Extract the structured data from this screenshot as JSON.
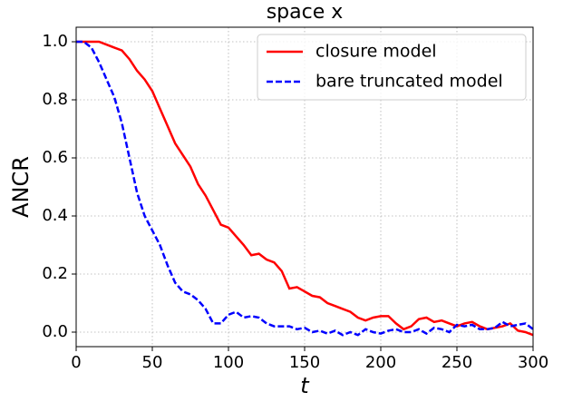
{
  "chart_data": {
    "type": "line",
    "title": "space x",
    "xlabel": "t",
    "ylabel": "ANCR",
    "x": [
      0,
      5,
      10,
      15,
      20,
      25,
      30,
      35,
      40,
      45,
      50,
      55,
      60,
      65,
      70,
      75,
      80,
      85,
      90,
      95,
      100,
      105,
      110,
      115,
      120,
      125,
      130,
      135,
      140,
      145,
      150,
      155,
      160,
      165,
      170,
      175,
      180,
      185,
      190,
      195,
      200,
      205,
      210,
      215,
      220,
      225,
      230,
      235,
      240,
      245,
      250,
      255,
      260,
      265,
      270,
      275,
      280,
      285,
      290,
      295,
      300
    ],
    "series": [
      {
        "name": "closure model",
        "color": "#ff0000",
        "linestyle": "solid",
        "values": [
          1.0,
          1.0,
          1.0,
          1.0,
          0.99,
          0.98,
          0.97,
          0.94,
          0.9,
          0.87,
          0.83,
          0.77,
          0.71,
          0.65,
          0.61,
          0.57,
          0.51,
          0.47,
          0.42,
          0.37,
          0.36,
          0.33,
          0.3,
          0.265,
          0.27,
          0.25,
          0.24,
          0.21,
          0.15,
          0.155,
          0.14,
          0.125,
          0.12,
          0.1,
          0.09,
          0.08,
          0.07,
          0.05,
          0.04,
          0.05,
          0.055,
          0.055,
          0.03,
          0.01,
          0.02,
          0.045,
          0.05,
          0.035,
          0.04,
          0.03,
          0.02,
          0.03,
          0.035,
          0.02,
          0.01,
          0.015,
          0.02,
          0.03,
          0.005,
          0.0,
          -0.01
        ]
      },
      {
        "name": "bare truncated model",
        "color": "#0000ff",
        "linestyle": "dashed",
        "values": [
          1.0,
          1.0,
          0.98,
          0.93,
          0.87,
          0.81,
          0.72,
          0.6,
          0.48,
          0.4,
          0.35,
          0.3,
          0.23,
          0.17,
          0.14,
          0.13,
          0.11,
          0.08,
          0.03,
          0.03,
          0.06,
          0.07,
          0.05,
          0.055,
          0.05,
          0.03,
          0.02,
          0.02,
          0.02,
          0.01,
          0.015,
          0.0,
          0.005,
          -0.005,
          0.005,
          -0.01,
          0.0,
          -0.01,
          0.01,
          0.0,
          -0.005,
          0.005,
          0.01,
          0.0,
          0.0,
          0.01,
          -0.005,
          0.015,
          0.01,
          0.0,
          0.025,
          0.02,
          0.025,
          0.01,
          0.01,
          0.015,
          0.035,
          0.02,
          0.025,
          0.03,
          0.01
        ]
      }
    ],
    "xlim": [
      0,
      300
    ],
    "xticks": [
      0,
      50,
      100,
      150,
      200,
      250,
      300
    ],
    "ylim": [
      -0.05,
      1.05
    ],
    "yticks": [
      {
        "value": 0,
        "label": "0.0"
      },
      {
        "value": 0.2,
        "label": "0.2"
      },
      {
        "value": 0.4,
        "label": "0.4"
      },
      {
        "value": 0.6,
        "label": "0.6"
      },
      {
        "value": 0.8,
        "label": "0.8"
      },
      {
        "value": 1,
        "label": "1.0"
      }
    ],
    "grid": true,
    "legend": "upper right"
  }
}
